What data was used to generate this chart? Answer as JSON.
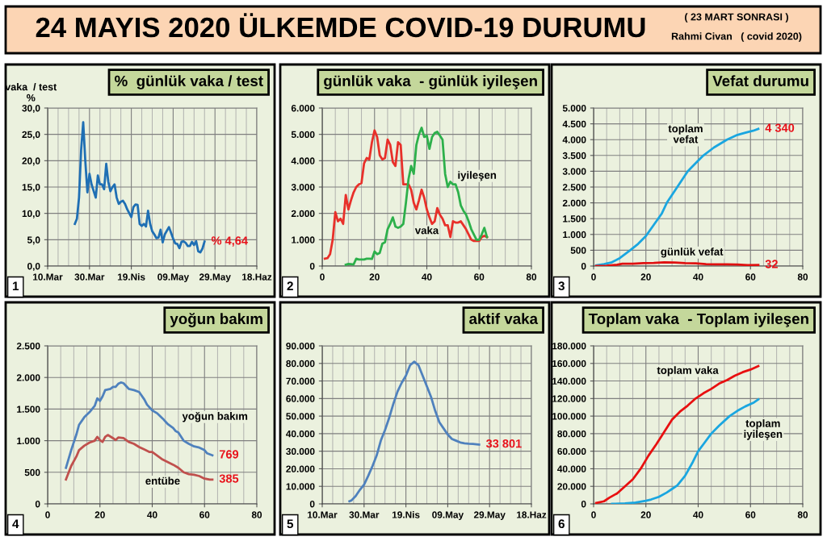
{
  "chart_data": [
    {
      "type": "other",
      "title": "24 MAYIS 2020 ÜLKEMDE COVID-19 DURUMU",
      "annotations": [
        "( 23 MART SONRASI )",
        "Rahmi Civan   ( covid 2020)"
      ]
    },
    {
      "type": "line",
      "title": "%  günlük vaka / test",
      "ylabel": "vaka  / test\n%",
      "annotations": [
        "1"
      ],
      "grid": true,
      "xlim": [
        "2020-03-10",
        "2020-06-18"
      ],
      "xticks": [
        {
          "value": "2020-03-10",
          "label": "10.Mar"
        },
        {
          "value": "2020-03-30",
          "label": "30.Mar"
        },
        {
          "value": "2020-04-19",
          "label": "19.Nis"
        },
        {
          "value": "2020-05-09",
          "label": "09.May"
        },
        {
          "value": "2020-05-29",
          "label": "29.May"
        },
        {
          "value": "2020-06-18",
          "label": "18.Haz"
        }
      ],
      "ylim": [
        0,
        30
      ],
      "yticks": [
        {
          "value": 0,
          "label": "0,0"
        },
        {
          "value": 5,
          "label": "5,0"
        },
        {
          "value": 10,
          "label": "10,0"
        },
        {
          "value": 15,
          "label": "15,0"
        },
        {
          "value": 20,
          "label": "20,0"
        },
        {
          "value": 25,
          "label": "25,0"
        },
        {
          "value": 30,
          "label": "30,0"
        }
      ],
      "series": [
        {
          "color": "#1f6fb4",
          "x": [
            "2020-03-23",
            "2020-03-24",
            "2020-03-25",
            "2020-03-26",
            "2020-03-27",
            "2020-03-28",
            "2020-03-29",
            "2020-03-30",
            "2020-03-31",
            "2020-04-02",
            "2020-04-03",
            "2020-04-04",
            "2020-04-05",
            "2020-04-06",
            "2020-04-07",
            "2020-04-08",
            "2020-04-09",
            "2020-04-10",
            "2020-04-11",
            "2020-04-12",
            "2020-04-13",
            "2020-04-14",
            "2020-04-15",
            "2020-04-16",
            "2020-04-17",
            "2020-04-19",
            "2020-04-20",
            "2020-04-21",
            "2020-04-22",
            "2020-04-23",
            "2020-04-24",
            "2020-04-25",
            "2020-04-26",
            "2020-04-27",
            "2020-04-28",
            "2020-04-29",
            "2020-04-30",
            "2020-05-01",
            "2020-05-02",
            "2020-05-03",
            "2020-05-04",
            "2020-05-05",
            "2020-05-07",
            "2020-05-08",
            "2020-05-09",
            "2020-05-10",
            "2020-05-11",
            "2020-05-12",
            "2020-05-13",
            "2020-05-14",
            "2020-05-15",
            "2020-05-16",
            "2020-05-17",
            "2020-05-18",
            "2020-05-19",
            "2020-05-20",
            "2020-05-21",
            "2020-05-22",
            "2020-05-23",
            "2020-05-24"
          ],
          "values": [
            8.0,
            9.0,
            13,
            22,
            27.3,
            20,
            14.0,
            17.5,
            15.5,
            13.0,
            17.2,
            15.5,
            15.5,
            14.6,
            19.4,
            16.0,
            14.2,
            15.0,
            15.5,
            13.0,
            11.8,
            12.2,
            12.4,
            11.8,
            10.8,
            9.3,
            11.2,
            11.7,
            11.6,
            8.0,
            7.6,
            8.0,
            7.5,
            10.5,
            8.0,
            6.6,
            6.0,
            5.3,
            5.4,
            6.9,
            4.5,
            6.0,
            7.4,
            6.3,
            5.2,
            4.3,
            4.2,
            3.4,
            4.6,
            4.7,
            4.4,
            3.8,
            3.8,
            4.6,
            4.0,
            4.7,
            2.8,
            2.6,
            3.3,
            4.64
          ],
          "value_labels": [
            null,
            null,
            null,
            null,
            null,
            null,
            null,
            null,
            null,
            null,
            null,
            null,
            null,
            null,
            null,
            null,
            null,
            null,
            null,
            null,
            null,
            null,
            null,
            null,
            null,
            null,
            null,
            null,
            null,
            null,
            null,
            null,
            null,
            null,
            null,
            null,
            null,
            null,
            null,
            null,
            null,
            null,
            null,
            null,
            null,
            null,
            null,
            null,
            null,
            null,
            null,
            null,
            null,
            null,
            null,
            null,
            null,
            null,
            null,
            "% 4,64"
          ]
        }
      ]
    },
    {
      "type": "line",
      "title": "günlük vaka  - günlük iyileşen",
      "grid": true,
      "annotations": [
        "2"
      ],
      "xlim": [
        0,
        80
      ],
      "xticks": [
        0,
        20,
        40,
        60,
        80
      ],
      "ylim": [
        0,
        6000
      ],
      "yticks": [
        0,
        {
          "value": 1000,
          "label": "1.000"
        },
        {
          "value": 2000,
          "label": "2.000"
        },
        {
          "value": 3000,
          "label": "3.000"
        },
        {
          "value": 4000,
          "label": "4.000"
        },
        {
          "value": 5000,
          "label": "5.000"
        },
        {
          "value": 6000,
          "label": "6.000"
        }
      ],
      "series": [
        {
          "name": "vaka",
          "color": "#e8302a",
          "x": [
            1,
            2,
            3,
            4,
            5,
            6,
            7,
            8,
            9,
            10,
            11,
            12,
            13,
            14,
            15,
            16,
            17,
            18,
            19,
            20,
            21,
            22,
            23,
            24,
            25,
            26,
            27,
            28,
            29,
            30,
            31,
            32,
            33,
            34,
            35,
            36,
            37,
            38,
            39,
            40,
            41,
            42,
            43,
            44,
            45,
            46,
            47,
            48,
            49,
            50,
            51,
            52,
            53,
            54,
            55,
            56,
            57,
            58,
            59,
            60,
            61,
            62,
            63
          ],
          "values": [
            280,
            300,
            450,
            1000,
            2050,
            1700,
            1800,
            1600,
            2700,
            2150,
            2500,
            2800,
            3000,
            3100,
            3150,
            3900,
            4100,
            4050,
            4700,
            5150,
            4900,
            4200,
            4050,
            4100,
            4800,
            4600,
            3950,
            3800,
            4700,
            4600,
            3100,
            3100,
            3100,
            2900,
            2400,
            2150,
            2500,
            2900,
            2600,
            2150,
            1850,
            1600,
            1700,
            2200,
            1950,
            1800,
            1550,
            1550,
            1100,
            1700,
            1650,
            1650,
            1700,
            1550,
            1400,
            1200,
            1000,
            950,
            950,
            950,
            1100,
            1150,
            1100
          ]
        },
        {
          "name": "iyileşen",
          "color": "#2db04b",
          "x": [
            9,
            10,
            11,
            12,
            13,
            14,
            15,
            16,
            17,
            18,
            19,
            20,
            21,
            22,
            23,
            24,
            25,
            26,
            27,
            28,
            29,
            30,
            31,
            32,
            33,
            34,
            35,
            36,
            37,
            38,
            39,
            40,
            41,
            42,
            43,
            44,
            45,
            46,
            47,
            48,
            49,
            50,
            51,
            52,
            53,
            54,
            55,
            56,
            57,
            58,
            59,
            60,
            61,
            62,
            63
          ],
          "values": [
            50,
            80,
            70,
            60,
            280,
            250,
            250,
            250,
            280,
            280,
            270,
            550,
            450,
            500,
            850,
            900,
            1400,
            1600,
            1850,
            1500,
            1450,
            1500,
            1600,
            2400,
            3300,
            3800,
            3500,
            4600,
            5000,
            5250,
            4900,
            4950,
            4450,
            4900,
            5050,
            5100,
            4950,
            4800,
            3500,
            3000,
            3200,
            3100,
            3100,
            2800,
            2300,
            2100,
            1950,
            1700,
            1400,
            1200,
            1000,
            1000,
            1200,
            1450,
            1100
          ]
        }
      ]
    },
    {
      "type": "line",
      "title": "Vefat durumu",
      "grid": true,
      "annotations": [
        "3"
      ],
      "xlim": [
        0,
        80
      ],
      "xticks": [
        0,
        20,
        40,
        60,
        80
      ],
      "ylim": [
        0,
        5000
      ],
      "yticks": [
        0,
        500,
        {
          "value": 1000,
          "label": "1.000"
        },
        {
          "value": 1500,
          "label": "1.500"
        },
        {
          "value": 2000,
          "label": "2.000"
        },
        {
          "value": 2500,
          "label": "2.500"
        },
        {
          "value": 3000,
          "label": "3.000"
        },
        {
          "value": 3500,
          "label": "3.500"
        },
        {
          "value": 4000,
          "label": "4.000"
        },
        {
          "value": 4500,
          "label": "4.500"
        },
        {
          "value": 5000,
          "label": "5.000"
        }
      ],
      "series": [
        {
          "name": "toplam\nvefat",
          "color": "#1aa6e0",
          "x": [
            1,
            4,
            7,
            10,
            14,
            17,
            20,
            23,
            26,
            28,
            32,
            36,
            39,
            42,
            46,
            51,
            55,
            58,
            61,
            63
          ],
          "values": [
            20,
            60,
            120,
            250,
            500,
            700,
            950,
            1300,
            1650,
            2000,
            2500,
            3000,
            3250,
            3500,
            3750,
            4000,
            4150,
            4220,
            4280,
            4340
          ],
          "value_labels": [
            null,
            null,
            null,
            null,
            null,
            null,
            null,
            null,
            null,
            null,
            null,
            null,
            null,
            null,
            null,
            null,
            null,
            null,
            null,
            "4 340"
          ]
        },
        {
          "name": "günlük vefat",
          "color": "#e01010",
          "x": [
            1,
            5,
            9,
            11,
            15,
            19,
            23,
            27,
            31,
            35,
            39,
            43,
            47,
            51,
            55,
            59,
            63
          ],
          "values": [
            2,
            10,
            40,
            75,
            75,
            95,
            100,
            120,
            110,
            90,
            85,
            60,
            55,
            55,
            45,
            30,
            32
          ],
          "value_labels": [
            null,
            null,
            null,
            null,
            null,
            null,
            null,
            null,
            null,
            null,
            null,
            null,
            null,
            null,
            null,
            null,
            "32"
          ]
        }
      ]
    },
    {
      "type": "line",
      "title": "yoğun bakım",
      "grid": true,
      "annotations": [
        "4"
      ],
      "xlim": [
        0,
        80
      ],
      "xticks": [
        0,
        20,
        40,
        60,
        80
      ],
      "ylim": [
        0,
        2500
      ],
      "yticks": [
        0,
        500,
        {
          "value": 1000,
          "label": "1.000"
        },
        {
          "value": 1500,
          "label": "1.500"
        },
        {
          "value": 2000,
          "label": "2.000"
        },
        {
          "value": 2500,
          "label": "2.500"
        }
      ],
      "series": [
        {
          "name": "yoğun bakım",
          "color": "#4f81bd",
          "x": [
            7,
            9,
            11,
            12,
            14,
            16,
            18,
            19,
            20,
            21,
            22,
            24,
            25,
            26,
            27,
            28,
            29,
            31,
            33,
            35,
            37,
            38,
            40,
            42,
            44,
            46,
            48,
            49,
            50,
            52,
            54,
            56,
            58,
            60,
            61,
            63
          ],
          "values": [
            570,
            850,
            1100,
            1250,
            1370,
            1450,
            1550,
            1670,
            1630,
            1700,
            1800,
            1820,
            1850,
            1850,
            1900,
            1920,
            1910,
            1820,
            1800,
            1770,
            1650,
            1570,
            1480,
            1430,
            1350,
            1260,
            1200,
            1150,
            1130,
            1000,
            950,
            910,
            890,
            850,
            800,
            769
          ],
          "value_labels": [
            null,
            null,
            null,
            null,
            null,
            null,
            null,
            null,
            null,
            null,
            null,
            null,
            null,
            null,
            null,
            null,
            null,
            null,
            null,
            null,
            null,
            null,
            null,
            null,
            null,
            null,
            null,
            null,
            null,
            null,
            null,
            null,
            null,
            null,
            null,
            "769"
          ]
        },
        {
          "name": "entübe",
          "color": "#c0504d",
          "x": [
            7,
            9,
            11,
            12,
            14,
            16,
            18,
            19,
            20,
            21,
            22,
            23,
            25,
            26,
            27,
            29,
            31,
            33,
            35,
            37,
            39,
            40,
            42,
            44,
            46,
            48,
            50,
            52,
            54,
            56,
            58,
            60,
            62,
            63
          ],
          "values": [
            385,
            600,
            750,
            850,
            920,
            970,
            1000,
            1060,
            1010,
            980,
            1060,
            1090,
            1040,
            1010,
            1050,
            1040,
            980,
            950,
            900,
            860,
            820,
            820,
            760,
            700,
            660,
            620,
            570,
            500,
            470,
            460,
            440,
            400,
            385,
            385
          ],
          "value_labels": [
            null,
            null,
            null,
            null,
            null,
            null,
            null,
            null,
            null,
            null,
            null,
            null,
            null,
            null,
            null,
            null,
            null,
            null,
            null,
            null,
            null,
            null,
            null,
            null,
            null,
            null,
            null,
            null,
            null,
            null,
            null,
            null,
            null,
            "385"
          ]
        }
      ]
    },
    {
      "type": "line",
      "title": "aktif vaka",
      "grid": true,
      "annotations": [
        "5"
      ],
      "xlim": [
        "2020-03-10",
        "2020-06-18"
      ],
      "xticks": [
        {
          "value": "2020-03-10",
          "label": "10.Mar"
        },
        {
          "value": "2020-03-30",
          "label": "30.Mar"
        },
        {
          "value": "2020-04-19",
          "label": "19.Nis"
        },
        {
          "value": "2020-05-09",
          "label": "09.May"
        },
        {
          "value": "2020-05-29",
          "label": "29.May"
        },
        {
          "value": "2020-06-18",
          "label": "18.Haz"
        }
      ],
      "ylim": [
        0,
        90000
      ],
      "yticks": [
        0,
        {
          "value": 10000,
          "label": "10.000"
        },
        {
          "value": 20000,
          "label": "20.000"
        },
        {
          "value": 30000,
          "label": "30.000"
        },
        {
          "value": 40000,
          "label": "40.000"
        },
        {
          "value": 50000,
          "label": "50.000"
        },
        {
          "value": 60000,
          "label": "60.000"
        },
        {
          "value": 70000,
          "label": "70.000"
        },
        {
          "value": 80000,
          "label": "80.000"
        },
        {
          "value": 90000,
          "label": "90.000"
        }
      ],
      "series": [
        {
          "color": "#4f81bd",
          "x": [
            "2020-03-23",
            "2020-03-24",
            "2020-03-26",
            "2020-03-28",
            "2020-03-30",
            "2020-04-01",
            "2020-04-03",
            "2020-04-05",
            "2020-04-07",
            "2020-04-09",
            "2020-04-11",
            "2020-04-13",
            "2020-04-15",
            "2020-04-17",
            "2020-04-19",
            "2020-04-21",
            "2020-04-23",
            "2020-04-25",
            "2020-04-27",
            "2020-04-29",
            "2020-05-01",
            "2020-05-03",
            "2020-05-05",
            "2020-05-07",
            "2020-05-09",
            "2020-05-11",
            "2020-05-13",
            "2020-05-15",
            "2020-05-17",
            "2020-05-19",
            "2020-05-21",
            "2020-05-24"
          ],
          "values": [
            1500,
            2000,
            4500,
            8000,
            11000,
            16000,
            21500,
            27500,
            36000,
            42000,
            49000,
            57000,
            64000,
            69000,
            73000,
            79000,
            81000,
            79000,
            73000,
            67000,
            61000,
            53000,
            46500,
            43000,
            39500,
            37000,
            36000,
            35000,
            34500,
            34300,
            34200,
            33801
          ],
          "value_labels": [
            null,
            null,
            null,
            null,
            null,
            null,
            null,
            null,
            null,
            null,
            null,
            null,
            null,
            null,
            null,
            null,
            null,
            null,
            null,
            null,
            null,
            null,
            null,
            null,
            null,
            null,
            null,
            null,
            null,
            null,
            null,
            "33 801"
          ]
        }
      ]
    },
    {
      "type": "line",
      "title": "Toplam vaka  - Toplam iyileşen",
      "grid": true,
      "annotations": [
        "6"
      ],
      "xlim": [
        0,
        80
      ],
      "xticks": [
        0,
        20,
        40,
        60,
        80
      ],
      "ylim": [
        0,
        180000
      ],
      "yticks": [
        0,
        {
          "value": 20000,
          "label": "20.000"
        },
        {
          "value": 40000,
          "label": "40.000"
        },
        {
          "value": 60000,
          "label": "60.000"
        },
        {
          "value": 80000,
          "label": "80.000"
        },
        {
          "value": 100000,
          "label": "100.000"
        },
        {
          "value": 120000,
          "label": "120.000"
        },
        {
          "value": 140000,
          "label": "140.000"
        },
        {
          "value": 160000,
          "label": "160.000"
        },
        {
          "value": 180000,
          "label": "180.000"
        }
      ],
      "series": [
        {
          "name": "toplam vaka",
          "color": "#e81010",
          "x": [
            1,
            4,
            6,
            9,
            12,
            15,
            18,
            21,
            24,
            27,
            30,
            33,
            36,
            39,
            42,
            45,
            48,
            51,
            54,
            57,
            60,
            63
          ],
          "values": [
            1000,
            3000,
            7000,
            12000,
            20000,
            28000,
            40000,
            55000,
            68000,
            82000,
            96000,
            105000,
            112000,
            120000,
            126000,
            131000,
            137000,
            141000,
            146000,
            150000,
            153000,
            157000
          ]
        },
        {
          "name": "toplam\niyileşen",
          "color": "#1aa6e0",
          "x": [
            7,
            12,
            16,
            20,
            22,
            25,
            28,
            30,
            32,
            35,
            38,
            40,
            42,
            45,
            48,
            52,
            55,
            58,
            61,
            63
          ],
          "values": [
            0,
            500,
            1500,
            3500,
            5000,
            8000,
            13000,
            17000,
            21000,
            32000,
            48000,
            60000,
            68000,
            80000,
            89000,
            100000,
            106000,
            111000,
            115000,
            119000
          ]
        }
      ]
    }
  ]
}
